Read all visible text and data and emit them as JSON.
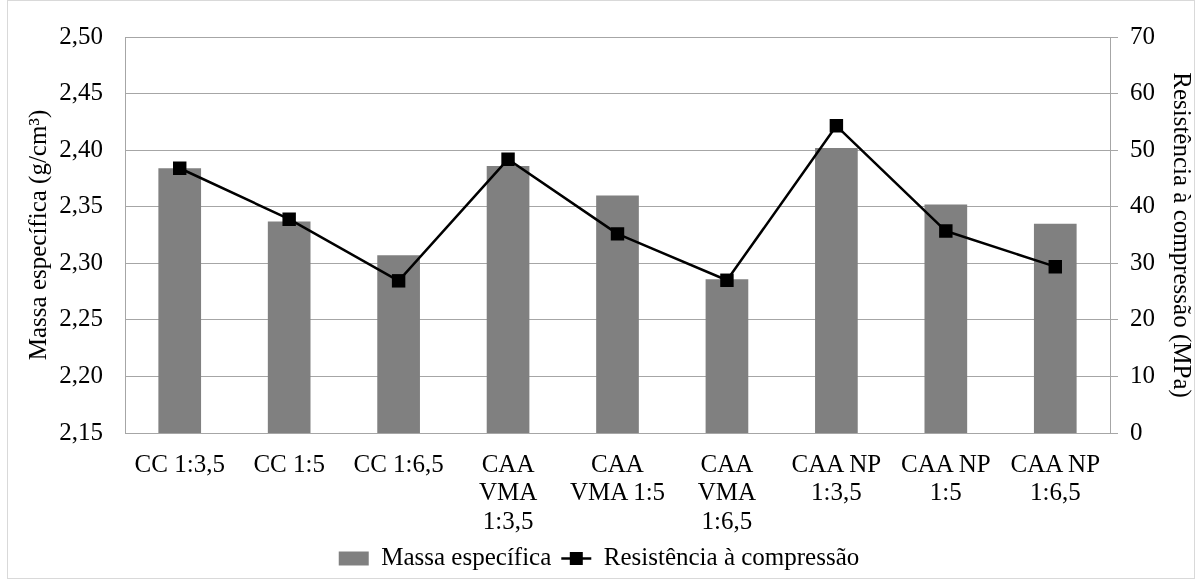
{
  "chart_data": {
    "type": "bar",
    "categories": [
      "CC 1:3,5",
      "CC 1:5",
      "CC 1:6,5",
      "CAA VMA 1:3,5",
      "CAA VMA 1:5",
      "CAA VMA 1:6,5",
      "CAA NP 1:3,5",
      "CAA NP 1:5",
      "CAA NP 1:6,5"
    ],
    "series": [
      {
        "name": "Massa específica",
        "color": "#808080",
        "values": [
          2.384,
          2.337,
          2.307,
          2.386,
          2.36,
          2.286,
          2.402,
          2.352,
          2.335
        ]
      },
      {
        "name": "Resistência à compressão",
        "type": "line",
        "axis": "y2",
        "color": "#000000",
        "values": [
          46.8,
          37.8,
          26.9,
          48.4,
          35.2,
          27.0,
          54.3,
          35.7,
          29.4
        ]
      }
    ],
    "ylabel": "Massa específica (g/cm³)",
    "y2label": "Resistência à compressão (MPa)",
    "ylim": [
      2.15,
      2.5
    ],
    "yticks": [
      {
        "value": 2.15,
        "label": "2,15"
      },
      {
        "value": 2.2,
        "label": "2,20"
      },
      {
        "value": 2.25,
        "label": "2,25"
      },
      {
        "value": 2.3,
        "label": "2,30"
      },
      {
        "value": 2.35,
        "label": "2,35"
      },
      {
        "value": 2.4,
        "label": "2,40"
      },
      {
        "value": 2.45,
        "label": "2,45"
      },
      {
        "value": 2.5,
        "label": "2,50"
      }
    ],
    "y2lim": [
      0,
      70
    ],
    "y2ticks": [
      0,
      10,
      20,
      30,
      40,
      50,
      60,
      70
    ],
    "grid": "y",
    "legend": "bottom",
    "marker": "square",
    "line_style": "solid"
  }
}
